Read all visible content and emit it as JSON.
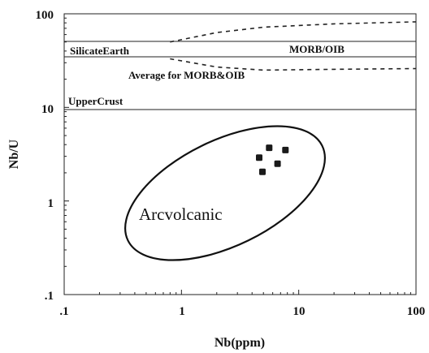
{
  "chart_data": {
    "type": "scatter",
    "title": "",
    "xlabel": "Nb(ppm)",
    "ylabel": "Nb/U",
    "xscale": "log",
    "yscale": "log",
    "xlim": [
      0.1,
      100
    ],
    "ylim": [
      0.1,
      100
    ],
    "x_ticks": [
      ".1",
      "1",
      "10",
      "100"
    ],
    "y_ticks": [
      ".1",
      "1",
      "10",
      "100"
    ],
    "grid": false,
    "points": [
      {
        "x": 4.6,
        "y": 2.9
      },
      {
        "x": 5.6,
        "y": 3.7
      },
      {
        "x": 7.7,
        "y": 3.5
      },
      {
        "x": 6.6,
        "y": 2.5
      },
      {
        "x": 4.9,
        "y": 2.05
      }
    ],
    "reference_lines": [
      {
        "label": "SilicateEarth",
        "y": 30
      },
      {
        "label": "UpperCrust",
        "y": 9.5
      },
      {
        "label": "MORB/OIB",
        "y_low": 34,
        "y_high": 50,
        "x_start": 0.85
      }
    ],
    "envelope": {
      "label": "Average for MORB&OIB",
      "upper": [
        [
          0.8,
          50
        ],
        [
          2,
          63
        ],
        [
          5,
          72
        ],
        [
          20,
          78
        ],
        [
          100,
          82
        ]
      ],
      "lower": [
        [
          0.8,
          33
        ],
        [
          2,
          27
        ],
        [
          5,
          25
        ],
        [
          20,
          25.5
        ],
        [
          100,
          26
        ]
      ]
    },
    "region": {
      "label": "Arcvolcanic"
    }
  }
}
